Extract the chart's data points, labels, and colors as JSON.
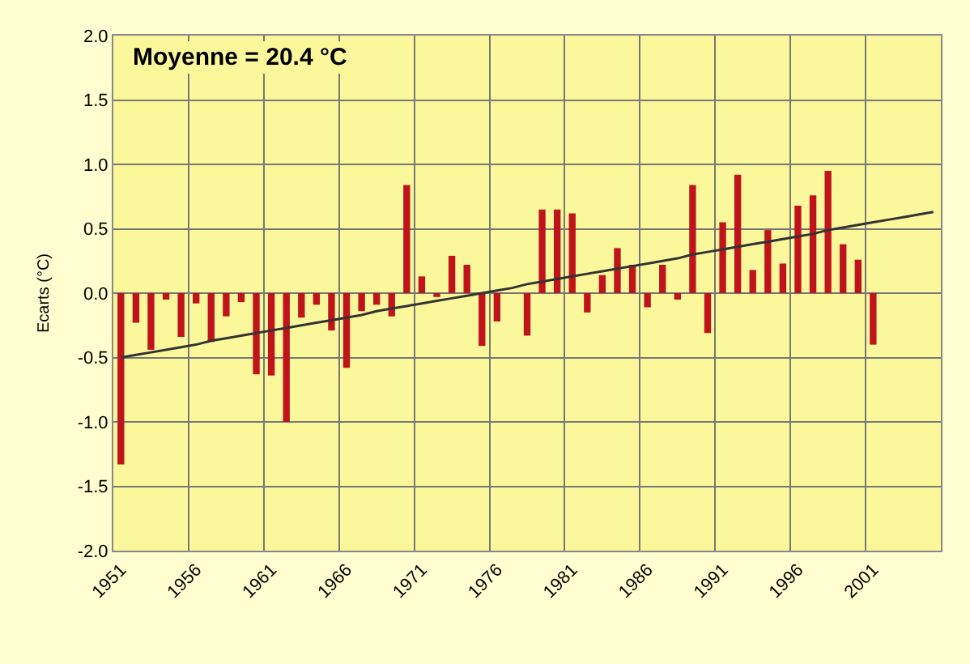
{
  "chart_data": {
    "type": "bar",
    "ylabel": "Ecarts (°C)",
    "annotations": [
      "Moyenne = 20.4 °C"
    ],
    "categories": [
      "1951",
      null,
      null,
      null,
      null,
      "1956",
      null,
      null,
      null,
      null,
      "1961",
      null,
      null,
      null,
      null,
      "1966",
      null,
      null,
      null,
      null,
      "1971",
      null,
      null,
      null,
      null,
      "1976",
      null,
      null,
      null,
      null,
      "1981",
      null,
      null,
      null,
      null,
      "1986",
      null,
      null,
      null,
      null,
      "1991",
      null,
      null,
      null,
      null,
      "1996",
      null,
      null,
      null,
      null,
      "2001",
      null,
      null,
      null,
      null
    ],
    "series": [
      {
        "color": "#c0141c",
        "values": [
          -1.33,
          -0.23,
          -0.44,
          -0.05,
          -0.34,
          -0.08,
          -0.38,
          -0.18,
          -0.07,
          -0.63,
          -0.64,
          -1.0,
          -0.19,
          -0.09,
          -0.29,
          -0.58,
          -0.14,
          -0.09,
          -0.18,
          0.84,
          0.13,
          -0.03,
          0.29,
          0.22,
          -0.41,
          -0.22,
          0.0,
          -0.33,
          0.65,
          0.65,
          0.62,
          -0.15,
          0.14,
          0.35,
          0.22,
          -0.11,
          0.22,
          -0.05,
          0.84,
          -0.31,
          0.55,
          0.92,
          0.18,
          0.49,
          0.23,
          0.68,
          0.76,
          0.95,
          0.38,
          0.26,
          -0.4,
          null,
          null,
          null,
          null
        ]
      },
      {
        "type": "line",
        "color": "#333333",
        "line_style": "solid",
        "values": [
          -0.5,
          -0.48,
          -0.46,
          -0.44,
          -0.42,
          -0.4,
          -0.37,
          -0.35,
          -0.33,
          -0.31,
          -0.29,
          -0.27,
          -0.25,
          -0.23,
          -0.21,
          -0.19,
          -0.17,
          -0.14,
          -0.12,
          -0.1,
          -0.08,
          -0.06,
          -0.04,
          -0.02,
          0.0,
          0.02,
          0.04,
          0.07,
          0.09,
          0.11,
          0.13,
          0.15,
          0.17,
          0.19,
          0.21,
          0.23,
          0.25,
          0.27,
          0.3,
          0.32,
          0.34,
          0.36,
          0.38,
          0.4,
          0.42,
          0.44,
          0.46,
          0.49,
          0.51,
          0.53,
          0.55,
          0.57,
          0.59,
          0.61,
          0.63
        ]
      }
    ],
    "ylim": [
      -2.0,
      2.0
    ],
    "yticks": [
      {
        "value": -2.0,
        "label": "-2.0"
      },
      {
        "value": -1.5,
        "label": "-1.5"
      },
      {
        "value": -1.0,
        "label": "-1.0"
      },
      {
        "value": -0.5,
        "label": "-0.5"
      },
      {
        "value": 0.0,
        "label": "0.0"
      },
      {
        "value": 0.5,
        "label": "0.5"
      },
      {
        "value": 1.0,
        "label": "1.0"
      },
      {
        "value": 1.5,
        "label": "1.5"
      },
      {
        "value": 2.0,
        "label": "2.0"
      }
    ],
    "grid": true
  }
}
